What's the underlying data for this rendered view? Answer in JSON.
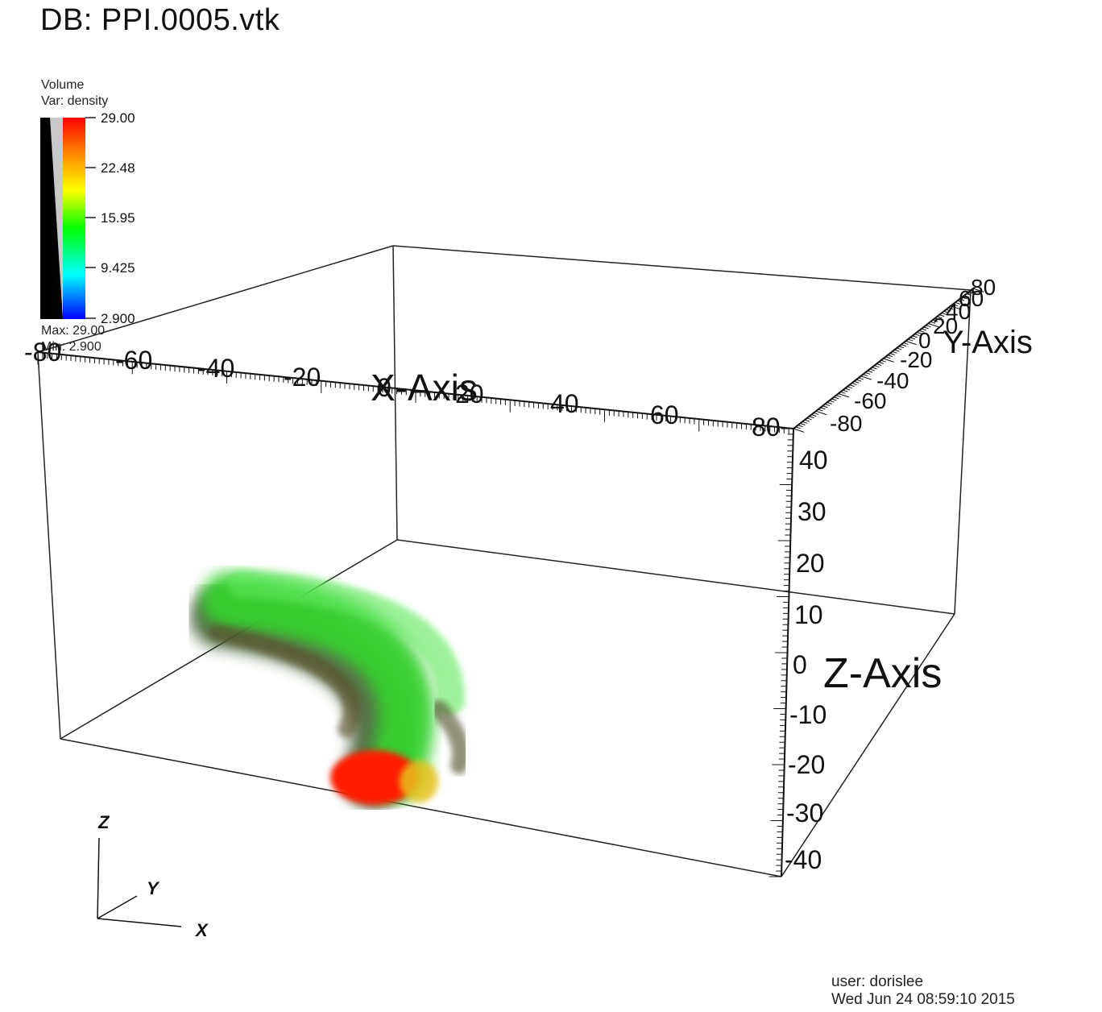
{
  "window": {
    "title": "DB: PPI.0005.vtk"
  },
  "legend": {
    "plot_type": "Volume",
    "variable": "Var: density",
    "tick_labels": [
      "29.00",
      "22.48",
      "15.95",
      "9.425",
      "2.900"
    ],
    "max_label": "Max:  29.00",
    "min_label": "Min:  2.900",
    "colormap": [
      "#ff0000",
      "#ff8800",
      "#ffff00",
      "#00ff00",
      "#00ffff",
      "#0000ff"
    ]
  },
  "axes": {
    "x_title": "X-Axis",
    "y_title": "Y-Axis",
    "z_title": "Z-Axis",
    "x_tick_labels": [
      "-80",
      "-60",
      "-40",
      "-20",
      "0",
      "20",
      "40",
      "60",
      "80"
    ],
    "y_tick_labels": [
      "-80",
      "-60",
      "-40",
      "-20",
      "0",
      "20",
      "40",
      "60",
      "80"
    ],
    "z_tick_labels": [
      "40",
      "30",
      "20",
      "10",
      "0",
      "-10",
      "-20",
      "-30",
      "-40"
    ]
  },
  "triad": {
    "x_label": "X",
    "y_label": "Y",
    "z_label": "Z"
  },
  "footer": {
    "user": "user: dorislee",
    "timestamp": "Wed Jun 24 08:59:10 2015"
  }
}
